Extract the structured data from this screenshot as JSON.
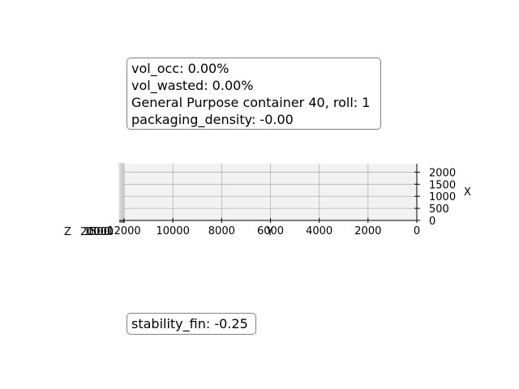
{
  "info_box": {
    "vol_occ": "vol_occ: 0.00%",
    "vol_wasted": "vol_wasted: 0.00%",
    "container": "General Purpose container 40, roll: 1",
    "packaging_density": "packaging_density: -0.00"
  },
  "stability_box": {
    "text": "stability_fin: -0.25"
  },
  "chart_data": {
    "type": "3d-box",
    "grid": true,
    "colors": {
      "pane": "#f2f2f2",
      "grid": "#b0b0b0",
      "axis": "#000000"
    },
    "y_axis": {
      "label": "Y",
      "range": [
        0,
        12000
      ],
      "direction": "decreasing-left",
      "ticks": [
        12000,
        10000,
        8000,
        6000,
        4000,
        2000,
        0
      ],
      "tick_labels": [
        "12000",
        "10000",
        "8000",
        "6000",
        "4000",
        "2000",
        "0"
      ]
    },
    "x_axis": {
      "label": "X",
      "range": [
        0,
        2350
      ],
      "ticks": [
        2000,
        1500,
        1000,
        500,
        0
      ],
      "tick_labels": [
        "2000",
        "1500",
        "1000",
        "500",
        "0"
      ]
    },
    "z_axis": {
      "label": "Z",
      "tick_labels_overlapping": "2000 1500 1000 500 0"
    }
  }
}
